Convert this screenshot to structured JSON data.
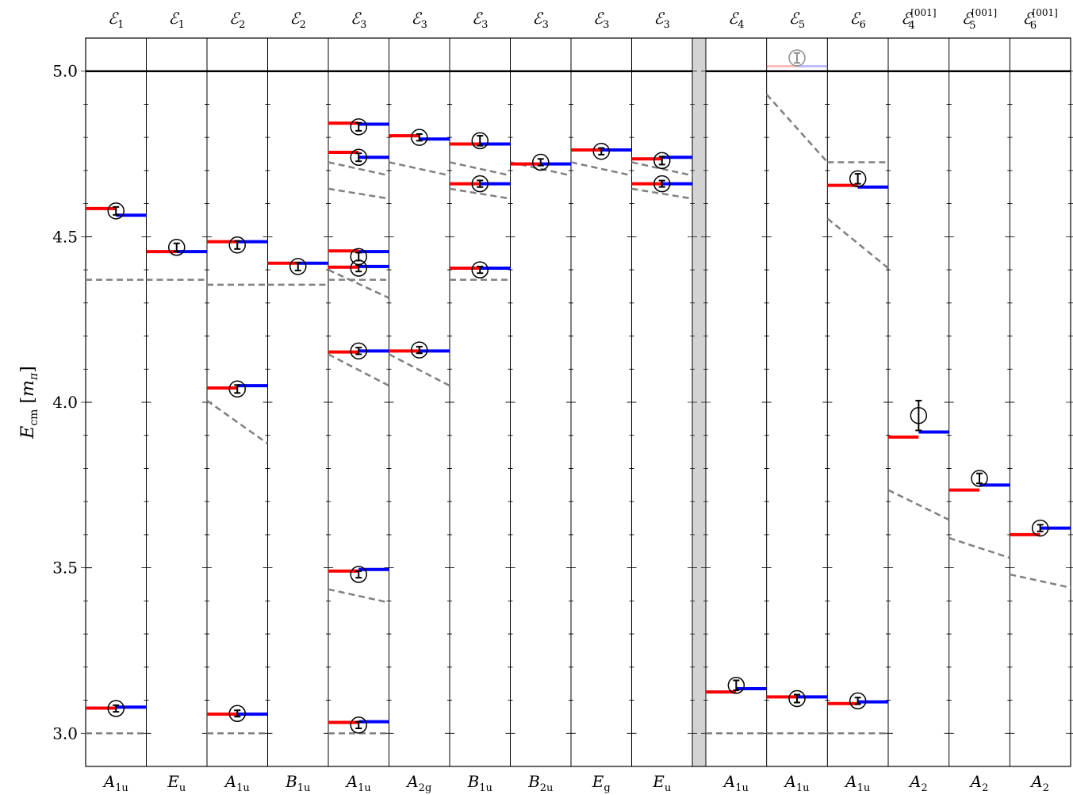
{
  "chart_data": {
    "type": "level-spectrum",
    "ylabel_main": "E",
    "ylabel_sub": "cm",
    "ylabel_unit_main": "m",
    "ylabel_unit_sub": "π",
    "ylim": [
      2.9,
      5.1
    ],
    "yticks": [
      3.0,
      3.5,
      4.0,
      4.5,
      5.0
    ],
    "ytick_labels": [
      "3.0",
      "3.5",
      "4.0",
      "4.5",
      "5.0"
    ],
    "threshold": 5.0,
    "colors": {
      "red": "#ff0000",
      "blue": "#0000ff",
      "dashed": "#808080",
      "separator": "#d3d3d3"
    },
    "left_columns": [
      {
        "top": "ℰ",
        "top_sub": "1",
        "top_sup": "",
        "bottom": "A",
        "bottom_sub": "1u",
        "red": [
          3.076,
          4.585
        ],
        "blue": [
          3.079,
          4.565
        ],
        "points": [
          [
            3.075,
            0.01
          ],
          [
            4.578,
            0.012
          ]
        ],
        "dashed": [
          [
            3.0,
            3.0
          ],
          [
            4.37,
            4.37
          ]
        ]
      },
      {
        "top": "ℰ",
        "top_sub": "1",
        "top_sup": "",
        "bottom": "E",
        "bottom_sub": "u",
        "red": [
          4.455
        ],
        "blue": [
          4.455
        ],
        "points": [
          [
            4.468,
            0.012
          ]
        ],
        "dashed": [
          [
            4.37,
            4.37
          ]
        ]
      },
      {
        "top": "ℰ",
        "top_sub": "2",
        "top_sup": "",
        "bottom": "A",
        "bottom_sub": "1u",
        "red": [
          3.058,
          4.043,
          4.485
        ],
        "blue": [
          3.058,
          4.05,
          4.485
        ],
        "points": [
          [
            3.06,
            0.008
          ],
          [
            4.04,
            0.012
          ],
          [
            4.475,
            0.012
          ]
        ],
        "dashed": [
          [
            3.0,
            3.0
          ],
          [
            4.005,
            3.875
          ],
          [
            4.355,
            4.355
          ]
        ]
      },
      {
        "top": "ℰ",
        "top_sub": "2",
        "top_sup": "",
        "bottom": "B",
        "bottom_sub": "1u",
        "red": [
          4.42
        ],
        "blue": [
          4.42
        ],
        "points": [
          [
            4.41,
            0.012
          ]
        ],
        "dashed": [
          [
            4.355,
            4.355
          ]
        ]
      },
      {
        "top": "ℰ",
        "top_sub": "3",
        "top_sup": "",
        "bottom": "A",
        "bottom_sub": "1u",
        "red": [
          3.033,
          3.49,
          4.152,
          4.408,
          4.457,
          4.755,
          4.843
        ],
        "blue": [
          3.035,
          3.495,
          4.155,
          4.41,
          4.455,
          4.74,
          4.84
        ],
        "points": [
          [
            3.025,
            0.01
          ],
          [
            3.48,
            0.01
          ],
          [
            4.155,
            0.01
          ],
          [
            4.405,
            0.01
          ],
          [
            4.44,
            0.012
          ],
          [
            4.74,
            0.012
          ],
          [
            4.832,
            0.012
          ]
        ],
        "dashed": [
          [
            3.0,
            3.0
          ],
          [
            3.435,
            3.395
          ],
          [
            4.145,
            4.05
          ],
          [
            4.37,
            4.37
          ],
          [
            4.4,
            4.315
          ],
          [
            4.645,
            4.615
          ],
          [
            4.725,
            4.685
          ]
        ]
      },
      {
        "top": "ℰ",
        "top_sub": "3",
        "top_sup": "",
        "bottom": "A",
        "bottom_sub": "2g",
        "red": [
          4.155,
          4.805
        ],
        "blue": [
          4.155,
          4.795
        ],
        "points": [
          [
            4.158,
            0.01
          ],
          [
            4.8,
            0.01
          ]
        ],
        "dashed": [
          [
            4.145,
            4.05
          ],
          [
            4.725,
            4.685
          ]
        ]
      },
      {
        "top": "ℰ",
        "top_sub": "3",
        "top_sup": "",
        "bottom": "B",
        "bottom_sub": "1u",
        "red": [
          4.405,
          4.66,
          4.78
        ],
        "blue": [
          4.405,
          4.66,
          4.78
        ],
        "points": [
          [
            4.4,
            0.01
          ],
          [
            4.66,
            0.01
          ],
          [
            4.79,
            0.015
          ]
        ],
        "dashed": [
          [
            4.37,
            4.37
          ],
          [
            4.645,
            4.615
          ],
          [
            4.725,
            4.685
          ]
        ]
      },
      {
        "top": "ℰ",
        "top_sub": "3",
        "top_sup": "",
        "bottom": "B",
        "bottom_sub": "2u",
        "red": [
          4.72
        ],
        "blue": [
          4.72
        ],
        "points": [
          [
            4.725,
            0.01
          ]
        ],
        "dashed": [
          [
            4.725,
            4.685
          ]
        ]
      },
      {
        "top": "ℰ",
        "top_sub": "3",
        "top_sup": "",
        "bottom": "E",
        "bottom_sub": "g",
        "red": [
          4.762
        ],
        "blue": [
          4.762
        ],
        "points": [
          [
            4.758,
            0.01
          ]
        ],
        "dashed": [
          [
            4.725,
            4.685
          ]
        ]
      },
      {
        "top": "ℰ",
        "top_sub": "3",
        "top_sup": "",
        "bottom": "E",
        "bottom_sub": "u",
        "red": [
          4.66,
          4.735
        ],
        "blue": [
          4.66,
          4.74
        ],
        "points": [
          [
            4.66,
            0.008
          ],
          [
            4.73,
            0.012
          ]
        ],
        "dashed": [
          [
            4.645,
            4.615
          ],
          [
            4.725,
            4.685
          ]
        ]
      }
    ],
    "right_columns": [
      {
        "top": "ℰ",
        "top_sub": "4",
        "top_sup": "",
        "bottom": "A",
        "bottom_sub": "1u",
        "red": [
          3.125
        ],
        "blue": [
          3.135
        ],
        "points": [
          [
            3.145,
            0.015
          ]
        ],
        "dashed": [
          [
            3.0,
            3.0
          ]
        ]
      },
      {
        "top": "ℰ",
        "top_sub": "5",
        "top_sup": "",
        "bottom": "A",
        "bottom_sub": "1u",
        "red": [
          3.11
        ],
        "blue": [
          3.11
        ],
        "points": [
          [
            3.105,
            0.012
          ]
        ],
        "dashed": [
          [
            3.0,
            3.0
          ],
          [
            4.93,
            4.725
          ]
        ],
        "faint_red": [
          5.015
        ],
        "faint_blue": [
          5.015
        ],
        "faint_points": [
          [
            5.04,
            0.015
          ]
        ]
      },
      {
        "top": "ℰ",
        "top_sub": "6",
        "top_sup": "",
        "bottom": "A",
        "bottom_sub": "1u",
        "red": [
          3.09,
          4.655
        ],
        "blue": [
          3.095,
          4.65
        ],
        "points": [
          [
            3.098,
            0.01
          ],
          [
            4.675,
            0.015
          ]
        ],
        "dashed": [
          [
            3.0,
            3.0
          ],
          [
            4.725,
            4.725
          ],
          [
            4.555,
            4.405
          ]
        ]
      },
      {
        "top": "ℰ",
        "top_sub": "4",
        "top_sup": "[001]",
        "bottom": "A",
        "bottom_sub": "2",
        "red": [
          3.895
        ],
        "blue": [
          3.91
        ],
        "points": [
          [
            3.96,
            0.045
          ]
        ],
        "dashed": [
          [
            3.735,
            3.645
          ]
        ]
      },
      {
        "top": "ℰ",
        "top_sub": "5",
        "top_sup": "[001]",
        "bottom": "A",
        "bottom_sub": "2",
        "red": [
          3.735
        ],
        "blue": [
          3.75
        ],
        "points": [
          [
            3.77,
            0.015
          ]
        ],
        "dashed": [
          [
            3.59,
            3.53
          ]
        ]
      },
      {
        "top": "ℰ",
        "top_sub": "6",
        "top_sup": "[001]",
        "bottom": "A",
        "bottom_sub": "2",
        "red": [
          3.6
        ],
        "blue": [
          3.62
        ],
        "points": [
          [
            3.62,
            0.01
          ]
        ],
        "dashed": [
          [
            3.48,
            3.44
          ]
        ]
      }
    ]
  }
}
